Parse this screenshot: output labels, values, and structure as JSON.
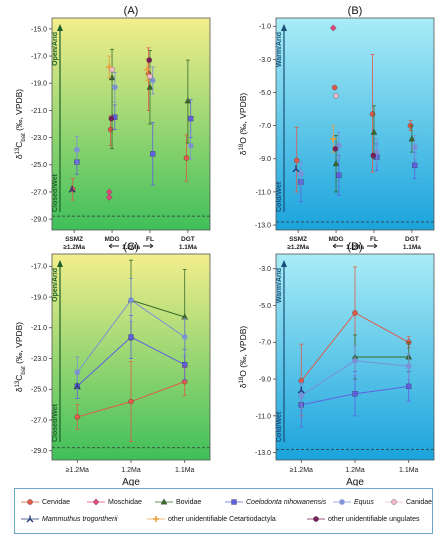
{
  "legend": [
    {
      "name": "Cervidae",
      "color": "#e05a48",
      "marker": "circle",
      "italic": false
    },
    {
      "name": "Moschidae",
      "color": "#e0457d",
      "marker": "diamond",
      "italic": false
    },
    {
      "name": "Bovidae",
      "color": "#3a6a2a",
      "marker": "triangle",
      "italic": false
    },
    {
      "name": "Coelodonta nihowanensis",
      "color": "#6060e0",
      "marker": "square",
      "italic": true
    },
    {
      "name": "Equus",
      "color": "#7a8fd6",
      "marker": "star",
      "italic": true
    },
    {
      "name": "Canidae",
      "color": "#f2b8cf",
      "marker": "circle",
      "italic": false
    },
    {
      "name": "Mammuthus trogontherii",
      "color": "#243a78",
      "marker": "y",
      "italic": true
    },
    {
      "name": "other unidentifiable Cetartiodactyla",
      "color": "#e8a040",
      "marker": "plus",
      "italic": false
    },
    {
      "name": "other unidentifiable ungulates",
      "color": "#7a1f5a",
      "marker": "circle",
      "italic": false
    }
  ],
  "chart_data": [
    {
      "type": "scatter",
      "panel": "(A)",
      "ylabel_parts": [
        "δ",
        "13",
        "C",
        "bat",
        " (‰, VPDB)"
      ],
      "ylim": [
        -29.8,
        -14.2
      ],
      "yticks": [
        -15.0,
        -17.0,
        -19.0,
        -21.0,
        -23.0,
        -25.0,
        -27.0,
        -29.0
      ],
      "categories": [
        "SSMZ",
        "MDG",
        "FL",
        "DGT"
      ],
      "category_sublabels": [
        "≥1.2Ma",
        "1.2Ma",
        "",
        "1.1Ma"
      ],
      "arrow_labels": {
        "top": "Open/Arid",
        "bottom": "Closed/Wet"
      },
      "background": "green",
      "series": [
        {
          "name": "Cervidae",
          "points": [
            {
              "x": "SSMZ",
              "y": -26.8,
              "lo": -27.6,
              "hi": -26.0
            },
            {
              "x": "MDG",
              "y": -22.4,
              "lo": -23.6,
              "hi": -21.4
            },
            {
              "x": "FL",
              "y": -18.3,
              "lo": -21.0,
              "hi": -16.4
            },
            {
              "x": "DGT",
              "y": -24.5,
              "lo": -26.2,
              "hi": -22.8
            }
          ]
        },
        {
          "name": "Moschidae",
          "points": [
            {
              "x": "MDG",
              "y": -27.0
            },
            {
              "x": "MDG",
              "y": -27.4
            }
          ]
        },
        {
          "name": "Bovidae",
          "points": [
            {
              "x": "MDG",
              "y": -18.6,
              "lo": -23.8,
              "hi": -16.5
            },
            {
              "x": "FL",
              "y": -19.3,
              "lo": -22.0,
              "hi": -16.6
            },
            {
              "x": "DGT",
              "y": -20.3,
              "lo": -23.4,
              "hi": -17.3
            }
          ]
        },
        {
          "name": "Coelodonta nihowanensis",
          "points": [
            {
              "x": "SSMZ",
              "y": -24.8,
              "lo": -25.7,
              "hi": -23.9
            },
            {
              "x": "MDG",
              "y": -21.5,
              "lo": -22.4,
              "hi": -20.6
            },
            {
              "x": "FL",
              "y": -24.2,
              "lo": -26.5,
              "hi": -21.9
            },
            {
              "x": "DGT",
              "y": -21.6,
              "lo": -23.0,
              "hi": -20.2
            }
          ]
        },
        {
          "name": "Equus",
          "points": [
            {
              "x": "SSMZ",
              "y": -23.9,
              "lo": -24.9,
              "hi": -22.9
            },
            {
              "x": "MDG",
              "y": -19.3,
              "lo": -20.4,
              "hi": -18.2
            },
            {
              "x": "FL",
              "y": -18.8,
              "lo": -19.8,
              "hi": -17.8
            },
            {
              "x": "DGT",
              "y": -23.6,
              "lo": -24.6,
              "hi": -22.6
            }
          ]
        },
        {
          "name": "Canidae",
          "points": [
            {
              "x": "MDG",
              "y": -18.0
            },
            {
              "x": "FL",
              "y": -18.5
            }
          ]
        },
        {
          "name": "Mammuthus trogontherii",
          "points": [
            {
              "x": "SSMZ",
              "y": -26.8
            }
          ]
        },
        {
          "name": "other unidentifiable Cetartiodactyla",
          "points": [
            {
              "x": "MDG",
              "y": -17.8,
              "lo": -18.6,
              "hi": -17.0
            },
            {
              "x": "FL",
              "y": -18.0,
              "lo": -18.8,
              "hi": -17.2
            }
          ]
        },
        {
          "name": "other unidentifiable ungulates",
          "points": [
            {
              "x": "MDG",
              "y": -21.6
            },
            {
              "x": "FL",
              "y": -17.3
            }
          ]
        }
      ]
    },
    {
      "type": "scatter",
      "panel": "(B)",
      "ylabel_parts": [
        "δ",
        "18",
        "O",
        "",
        " (‰, VPDB)"
      ],
      "ylim": [
        -13.3,
        -0.5
      ],
      "yticks": [
        -1.0,
        -3.0,
        -5.0,
        -7.0,
        -9.0,
        -11.0,
        -13.0
      ],
      "categories": [
        "SSMZ",
        "MDG",
        "FL",
        "DGT"
      ],
      "category_sublabels": [
        "≥1.2Ma",
        "1.2Ma",
        "",
        "1.1Ma"
      ],
      "arrow_labels": {
        "top": "Warm/Arid",
        "bottom": "Cold/Wet"
      },
      "background": "blue",
      "series": [
        {
          "name": "Cervidae",
          "points": [
            {
              "x": "SSMZ",
              "y": -9.1,
              "lo": -11.0,
              "hi": -7.1
            },
            {
              "x": "MDG",
              "y": -4.7
            },
            {
              "x": "FL",
              "y": -6.3,
              "lo": -9.8,
              "hi": -2.7
            },
            {
              "x": "DGT",
              "y": -7.0,
              "lo": -7.3,
              "hi": -6.7
            }
          ]
        },
        {
          "name": "Moschidae",
          "points": [
            {
              "x": "MDG",
              "y": -1.1
            }
          ]
        },
        {
          "name": "Bovidae",
          "points": [
            {
              "x": "MDG",
              "y": -9.3,
              "lo": -11.0,
              "hi": -7.6
            },
            {
              "x": "FL",
              "y": -7.4,
              "lo": -9.0,
              "hi": -5.8
            },
            {
              "x": "DGT",
              "y": -7.8,
              "lo": -8.6,
              "hi": -7.0
            }
          ]
        },
        {
          "name": "Coelodonta nihowanensis",
          "points": [
            {
              "x": "SSMZ",
              "y": -10.4,
              "lo": -11.6,
              "hi": -9.2
            },
            {
              "x": "MDG",
              "y": -10.0,
              "lo": -11.2,
              "hi": -8.8
            },
            {
              "x": "FL",
              "y": -8.9,
              "lo": -9.7,
              "hi": -8.1
            },
            {
              "x": "DGT",
              "y": -9.4,
              "lo": -10.2,
              "hi": -8.6
            }
          ]
        },
        {
          "name": "Equus",
          "points": [
            {
              "x": "SSMZ",
              "y": -9.9,
              "lo": -10.6,
              "hi": -9.2
            },
            {
              "x": "MDG",
              "y": -8.2,
              "lo": -9.0,
              "hi": -7.4
            },
            {
              "x": "FL",
              "y": -8.6,
              "lo": -9.4,
              "hi": -7.8
            },
            {
              "x": "DGT",
              "y": -8.3,
              "lo": -9.0,
              "hi": -7.6
            }
          ]
        },
        {
          "name": "Canidae",
          "points": [
            {
              "x": "MDG",
              "y": -5.2
            }
          ]
        },
        {
          "name": "Mammuthus trogontherii",
          "points": [
            {
              "x": "SSMZ",
              "y": -9.6
            }
          ]
        },
        {
          "name": "other unidentifiable Cetartiodactyla",
          "points": [
            {
              "x": "MDG",
              "y": -7.8,
              "lo": -8.6,
              "hi": -7.0
            }
          ]
        },
        {
          "name": "other unidentifiable ungulates",
          "points": [
            {
              "x": "MDG",
              "y": -8.4
            },
            {
              "x": "FL",
              "y": -8.8
            }
          ]
        }
      ]
    },
    {
      "type": "line",
      "panel": "(C)",
      "ylabel_parts": [
        "δ",
        "13",
        "C",
        "bat",
        " (‰, VPDB)"
      ],
      "ylim": [
        -29.6,
        -16.2
      ],
      "yticks": [
        -17.0,
        -19.0,
        -21.0,
        -23.0,
        -25.0,
        -27.0,
        -29.0
      ],
      "categories": [
        "≥1.2Ma",
        "1.2Ma",
        "1.1Ma"
      ],
      "xlabel": "Age",
      "arrow_labels": {
        "top": "Open/Arid",
        "bottom": "Closed/Wet"
      },
      "background": "green",
      "series": [
        {
          "name": "Cervidae",
          "values": [
            -26.8,
            -25.8,
            -24.5
          ],
          "lo": [
            -27.6,
            -28.4,
            -25.4
          ],
          "hi": [
            -26.0,
            -23.2,
            -23.6
          ]
        },
        {
          "name": "Bovidae",
          "values": [
            null,
            -19.2,
            -20.3
          ],
          "lo": [
            null,
            -21.8,
            -23.4
          ],
          "hi": [
            null,
            -16.6,
            -17.2
          ]
        },
        {
          "name": "Coelodonta nihowanensis",
          "values": [
            -24.8,
            -21.6,
            -23.4
          ],
          "lo": [
            -25.6,
            -23.0,
            -24.4
          ],
          "hi": [
            -24.0,
            -20.2,
            -22.4
          ]
        },
        {
          "name": "Equus",
          "values": [
            -23.9,
            -19.2,
            -21.6
          ],
          "lo": [
            -24.9,
            -20.6,
            -22.8
          ],
          "hi": [
            -22.9,
            -17.8,
            -20.4
          ]
        },
        {
          "name": "Mammuthus trogontherii",
          "values": [
            -24.8,
            null,
            null
          ],
          "lo": [
            null,
            null,
            null
          ],
          "hi": [
            null,
            null,
            null
          ]
        }
      ]
    },
    {
      "type": "line",
      "panel": "(D)",
      "ylabel_parts": [
        "δ",
        "18",
        "O",
        "",
        " (‰, VPDB)"
      ],
      "ylim": [
        -13.4,
        -2.2
      ],
      "yticks": [
        -3.0,
        -5.0,
        -7.0,
        -9.0,
        -11.0,
        -13.0
      ],
      "categories": [
        "≥1.2Ma",
        "1.2Ma",
        "1.1Ma"
      ],
      "xlabel": "Age",
      "arrow_labels": {
        "top": "Warm/Arid",
        "bottom": "Cold/Wet"
      },
      "background": "blue",
      "series": [
        {
          "name": "Cervidae",
          "values": [
            -9.1,
            -5.4,
            -7.0
          ],
          "lo": [
            -11.0,
            -7.9,
            -7.3
          ],
          "hi": [
            -7.1,
            -2.9,
            -6.7
          ]
        },
        {
          "name": "Bovidae",
          "values": [
            null,
            -7.8,
            -7.8
          ],
          "lo": [
            null,
            -9.0,
            -8.6
          ],
          "hi": [
            null,
            -6.6,
            -7.0
          ]
        },
        {
          "name": "Coelodonta nihowanensis",
          "values": [
            -10.4,
            -9.8,
            -9.4
          ],
          "lo": [
            -11.6,
            -11.0,
            -10.2
          ],
          "hi": [
            -9.2,
            -8.6,
            -8.6
          ]
        },
        {
          "name": "Equus",
          "values": [
            -9.9,
            -8.0,
            -8.3
          ],
          "lo": [
            -10.6,
            -8.8,
            -9.0
          ],
          "hi": [
            -9.2,
            -7.2,
            -7.6
          ]
        },
        {
          "name": "Mammuthus trogontherii",
          "values": [
            -9.6,
            null,
            null
          ],
          "lo": [
            null,
            null,
            null
          ],
          "hi": [
            null,
            null,
            null
          ]
        }
      ]
    }
  ]
}
